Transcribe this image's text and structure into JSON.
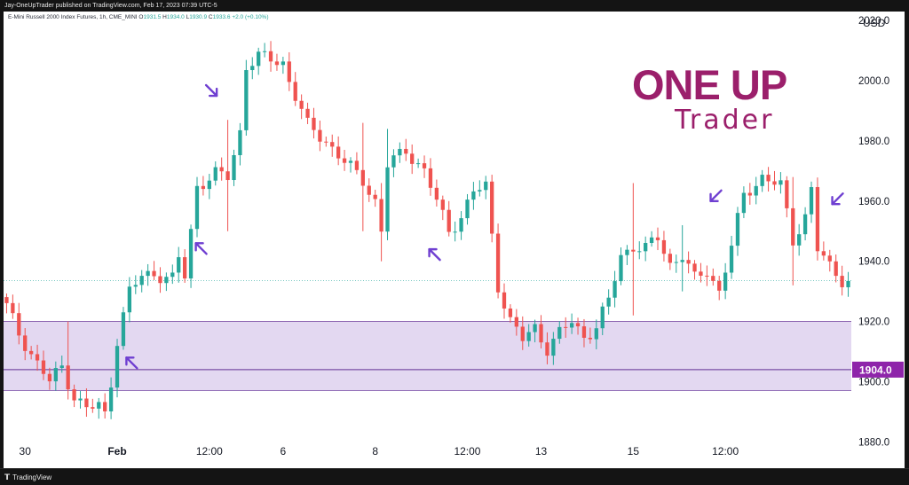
{
  "header": {
    "publish_note": "Jay-OneUpTrader published on TradingView.com, Feb 17, 2023 07:39 UTC-5"
  },
  "legend": {
    "symbol": "E-Mini Russell 2000 Index Futures, 1h, CME_MINI",
    "open_label": "O",
    "open": "1931.5",
    "high_label": "H",
    "high": "1934.0",
    "low_label": "L",
    "low": "1930.9",
    "close_label": "C",
    "close": "1933.6",
    "change": "+2.0 (+0.10%)"
  },
  "branding": {
    "logo_main": "ONE UP",
    "logo_sub": "Trader",
    "logo_color": "#9b1f6b"
  },
  "footer": {
    "brand": "TradingView",
    "icon": "tradingview-logo-icon"
  },
  "colors": {
    "bull": "#26a69a",
    "bear": "#ef5350",
    "zone_fill": "#e3d8f1",
    "zone_line": "#7b4fa6",
    "level_line": "#7b4fa6",
    "level_badge": "#8e24aa",
    "arrow": "#6f3fd1",
    "last_price_line": "#26a69a"
  },
  "chart_data": {
    "type": "candlestick",
    "currency": "USD",
    "y_axis_title": "USD",
    "ylim": [
      1874.5,
      2023
    ],
    "y_ticks": [
      2020.0,
      2000.0,
      1980.0,
      1960.0,
      1940.0,
      1920.0,
      1900.0,
      1880.0
    ],
    "x_ticks": [
      "30",
      "Feb",
      "12:00",
      "6",
      "8",
      "12:00",
      "13",
      "15",
      "12:00"
    ],
    "x_tick_bar_index": [
      3,
      18,
      33,
      45,
      60,
      75,
      87,
      102,
      117
    ],
    "highlighted_level": "1904.0",
    "highlighted_level_value": 1904.0,
    "zone": {
      "top": 1920.0,
      "bottom": 1897.0
    },
    "last_price": 1933.6,
    "path": [
      [
        0,
        1925
      ],
      [
        2,
        1916
      ],
      [
        5,
        1906
      ],
      [
        7,
        1900
      ],
      [
        9,
        1905
      ],
      [
        11,
        1895
      ],
      [
        13,
        1891
      ],
      [
        15,
        1892
      ],
      [
        16,
        1889
      ],
      [
        17,
        1900
      ],
      [
        18,
        1914
      ],
      [
        20,
        1930
      ],
      [
        22,
        1935
      ],
      [
        24,
        1936
      ],
      [
        27,
        1934
      ],
      [
        28,
        1941
      ],
      [
        29,
        1935
      ],
      [
        31,
        1965
      ],
      [
        34,
        1969
      ],
      [
        36,
        1968
      ],
      [
        38,
        1983
      ],
      [
        39,
        2005
      ],
      [
        41,
        2008
      ],
      [
        43,
        2007
      ],
      [
        45,
        2006
      ],
      [
        46,
        2000
      ],
      [
        47,
        1995
      ],
      [
        49,
        1985
      ],
      [
        52,
        1980
      ],
      [
        55,
        1973
      ],
      [
        58,
        1967
      ],
      [
        60,
        1960
      ],
      [
        61,
        1950
      ],
      [
        62,
        1972
      ],
      [
        65,
        1977
      ],
      [
        68,
        1970
      ],
      [
        70,
        1960
      ],
      [
        72,
        1950
      ],
      [
        74,
        1955
      ],
      [
        76,
        1963
      ],
      [
        78,
        1965
      ],
      [
        80,
        1932
      ],
      [
        82,
        1920
      ],
      [
        84,
        1914
      ],
      [
        86,
        1918
      ],
      [
        88,
        1911
      ],
      [
        90,
        1916
      ],
      [
        92,
        1920
      ],
      [
        94,
        1915
      ],
      [
        96,
        1918
      ],
      [
        98,
        1927
      ],
      [
        100,
        1942
      ],
      [
        102,
        1945
      ],
      [
        104,
        1944
      ],
      [
        106,
        1948
      ],
      [
        108,
        1939
      ],
      [
        110,
        1942
      ],
      [
        112,
        1934
      ],
      [
        114,
        1937
      ],
      [
        116,
        1930
      ],
      [
        118,
        1945
      ],
      [
        120,
        1962
      ],
      [
        123,
        1968
      ],
      [
        126,
        1965
      ],
      [
        128,
        1947
      ],
      [
        130,
        1955
      ],
      [
        131,
        1964
      ],
      [
        132,
        1944
      ],
      [
        134,
        1938
      ],
      [
        136,
        1934
      ],
      [
        137,
        1933.6
      ]
    ],
    "spikes": [
      [
        36,
        1950,
        1987
      ],
      [
        58,
        1950,
        1986
      ],
      [
        61,
        1940,
        1966
      ],
      [
        102,
        1922,
        1966
      ],
      [
        62,
        1947,
        1984
      ],
      [
        10,
        1899,
        1920
      ],
      [
        110,
        1930,
        1952
      ],
      [
        128,
        1932,
        1968
      ]
    ],
    "annotations": [
      {
        "type": "arrow",
        "bar": 34.2,
        "value": 1995,
        "direction": "down-right"
      },
      {
        "type": "arrow",
        "bar": 30.8,
        "value": 1946,
        "direction": "up-left"
      },
      {
        "type": "arrow",
        "bar": 19.5,
        "value": 1908,
        "direction": "up-left"
      },
      {
        "type": "arrow",
        "bar": 68.8,
        "value": 1944,
        "direction": "up-left"
      },
      {
        "type": "arrow",
        "bar": 114.6,
        "value": 1960,
        "direction": "down-left"
      },
      {
        "type": "arrow",
        "bar": 134.4,
        "value": 1959,
        "direction": "down-left"
      }
    ]
  }
}
